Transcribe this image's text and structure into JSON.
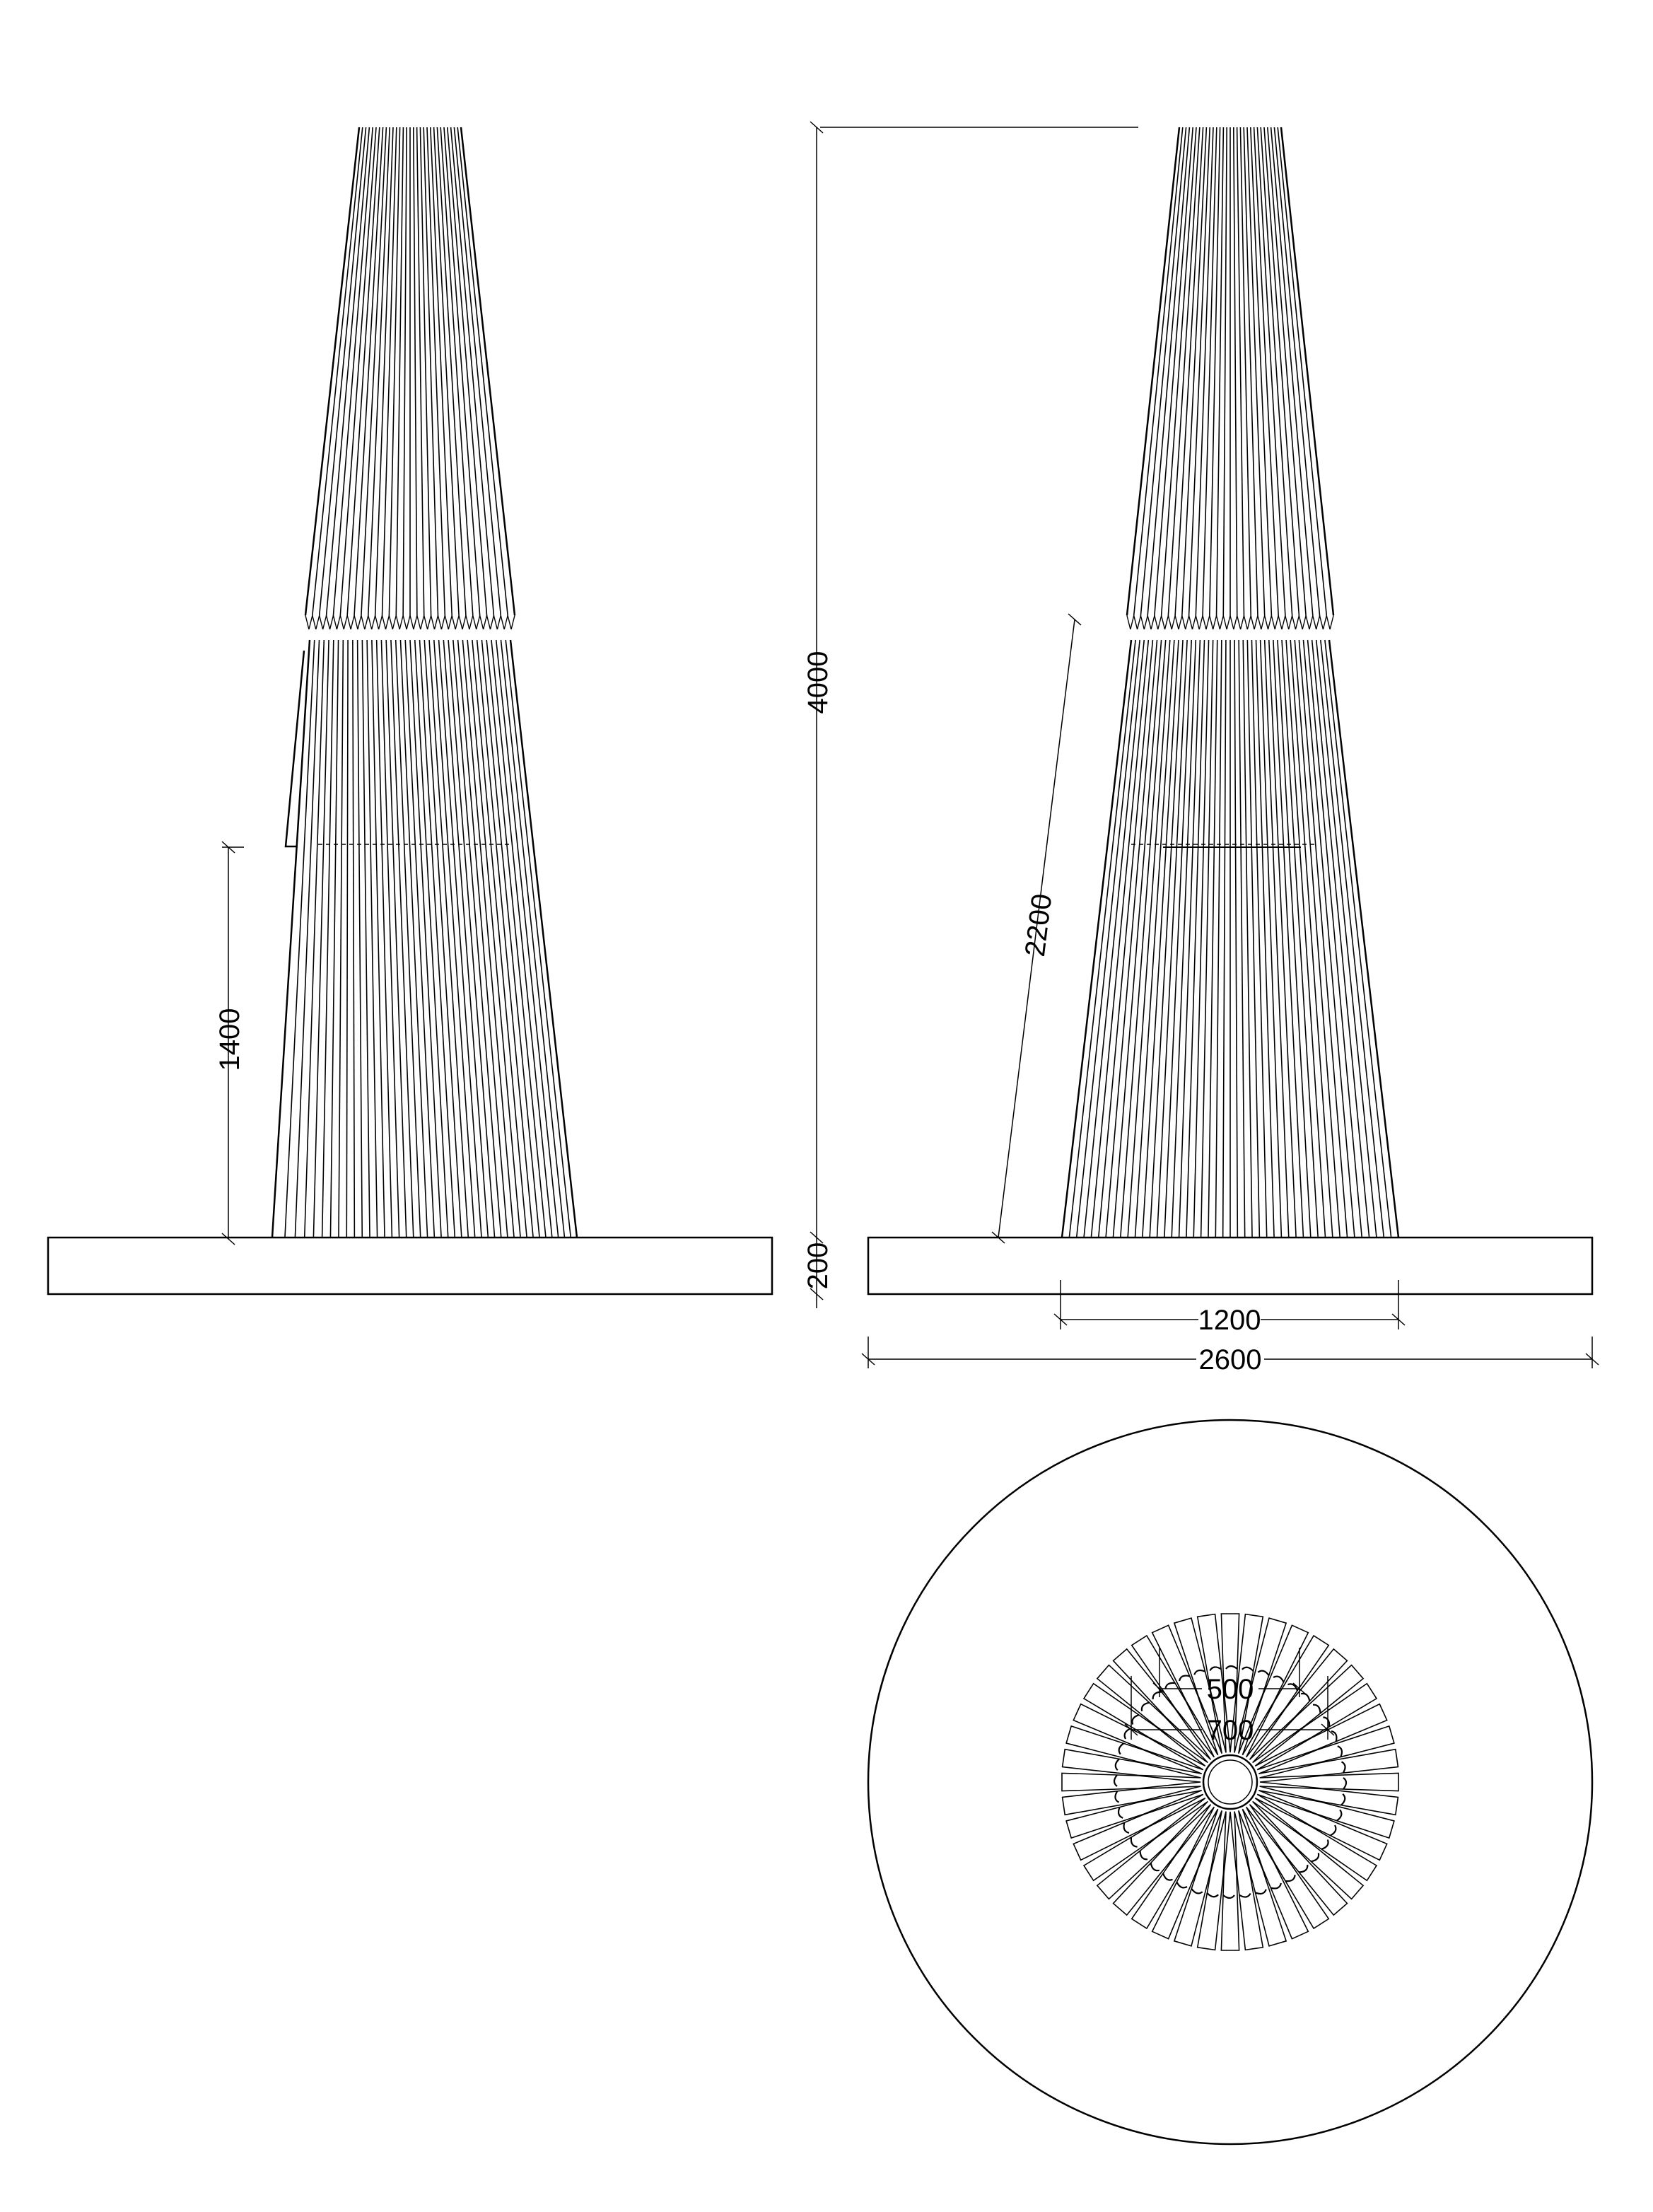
{
  "drawing": {
    "views": [
      "side-elevation-left",
      "side-elevation-right",
      "plan-view"
    ],
    "dimensions": {
      "opening_height": "1400",
      "overall_height": "4000",
      "base_thickness": "200",
      "diagonal_opening": "2200",
      "cone_base_width": "1200",
      "base_width": "2600",
      "inner_diameter": "500",
      "outer_diameter": "700"
    },
    "colors": {
      "line": "#000000",
      "background": "#ffffff"
    }
  }
}
